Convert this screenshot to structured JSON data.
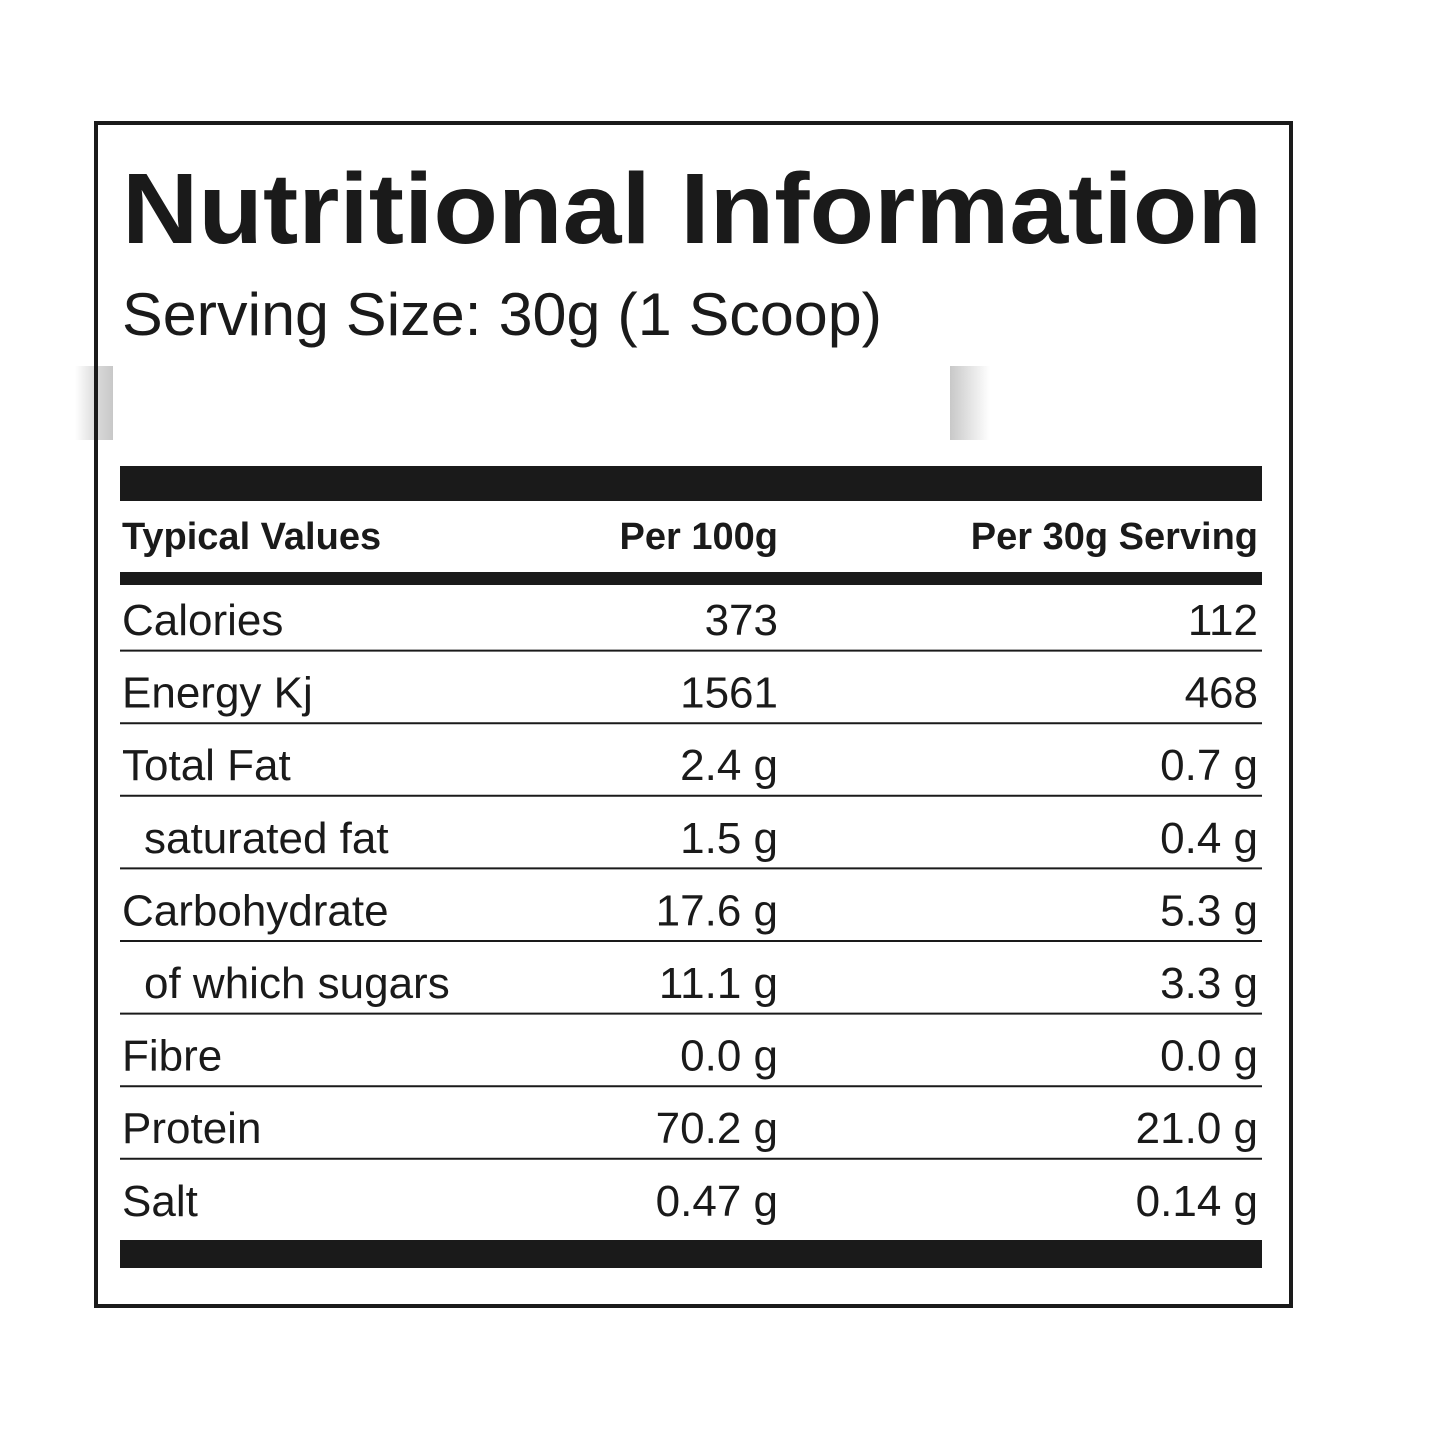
{
  "header": {
    "title": "Nutritional Information",
    "serving_size": "Serving Size: 30g (1 Scoop)"
  },
  "table": {
    "columns": [
      "Typical Values",
      "Per 100g",
      "Per 30g  Serving"
    ],
    "rows": [
      [
        "Calories",
        "373",
        "112"
      ],
      [
        "Energy Kj",
        "1561",
        "468"
      ],
      [
        "Total Fat",
        "2.4 g",
        "0.7 g"
      ],
      [
        "saturated fat",
        "1.5 g",
        "0.4 g"
      ],
      [
        "Carbohydrate",
        "17.6 g",
        "5.3 g"
      ],
      [
        "of which sugars",
        "11.1 g",
        "3.3 g"
      ],
      [
        "Fibre",
        "0.0 g",
        "0.0 g"
      ],
      [
        "Protein",
        "70.2 g",
        "21.0 g"
      ],
      [
        "Salt",
        "0.47 g",
        "0.14 g"
      ]
    ]
  }
}
